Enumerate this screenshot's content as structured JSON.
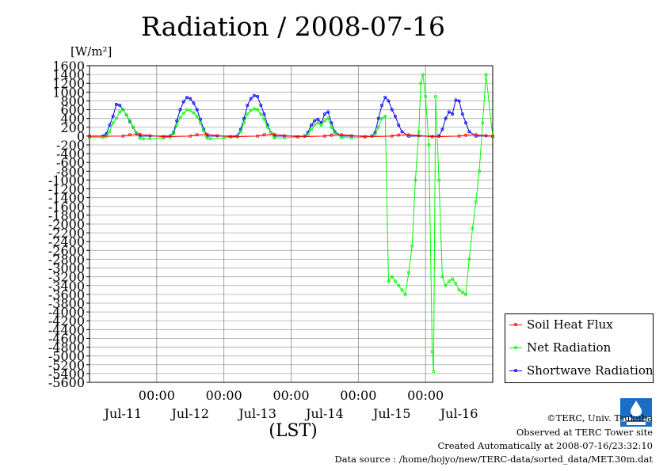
{
  "title": "Radiation / 2008-07-16",
  "unit_label": "[W/m²]",
  "x_axis_label": "(LST)",
  "legend": [
    {
      "name": "Soil Heat Flux",
      "color": "#ff0000"
    },
    {
      "name": "Net Radiation",
      "color": "#00ff00"
    },
    {
      "name": "Shortwave Radiation",
      "color": "#0000ff"
    }
  ],
  "credits": {
    "copyright": "©TERC, Univ. Tsukuba",
    "observed": "Observed at TERC Tower site",
    "created": "Created Automatically at 2008-07-16/23:32:10",
    "source": "Data source : /home/hojyo/new/TERC-data/sorted_data/MET.30m.dat"
  },
  "chart_data": {
    "type": "line",
    "title": "Radiation / 2008-07-16",
    "ylabel": "[W/m²]",
    "xlabel": "(LST)",
    "ylim": [
      -5600,
      1600
    ],
    "xlim_days": [
      0,
      6
    ],
    "y_ticks": [
      1600,
      1400,
      1200,
      1000,
      800,
      600,
      400,
      200,
      0,
      -200,
      -400,
      -600,
      -800,
      -1000,
      -1200,
      -1400,
      -1600,
      -1800,
      -2000,
      -2200,
      -2400,
      -2600,
      -2800,
      -3000,
      -3200,
      -3400,
      -3600,
      -3800,
      -4000,
      -4200,
      -4400,
      -4600,
      -4800,
      -5000,
      -5200,
      -5400,
      -5600
    ],
    "x_tick_labels": [
      {
        "day": 1,
        "time": "00:00"
      },
      {
        "day": 2,
        "time": "00:00"
      },
      {
        "day": 3,
        "time": "00:00"
      },
      {
        "day": 4,
        "time": "00:00"
      },
      {
        "day": 5,
        "time": "00:00"
      }
    ],
    "date_labels": [
      "Jul-11",
      "Jul-12",
      "Jul-13",
      "Jul-14",
      "Jul-15",
      "Jul-16"
    ],
    "grid": true,
    "legend_position": "bottom-right",
    "series": [
      {
        "name": "Soil Heat Flux",
        "color": "#ff0000",
        "points": [
          [
            0,
            -5
          ],
          [
            0.5,
            0
          ],
          [
            0.6,
            30
          ],
          [
            0.75,
            40
          ],
          [
            0.9,
            10
          ],
          [
            1.1,
            -15
          ],
          [
            1.5,
            0
          ],
          [
            1.6,
            30
          ],
          [
            1.75,
            40
          ],
          [
            1.9,
            10
          ],
          [
            2.1,
            -15
          ],
          [
            2.5,
            0
          ],
          [
            2.6,
            30
          ],
          [
            2.75,
            40
          ],
          [
            2.9,
            10
          ],
          [
            3.1,
            -15
          ],
          [
            3.5,
            0
          ],
          [
            3.6,
            20
          ],
          [
            3.75,
            30
          ],
          [
            3.9,
            10
          ],
          [
            4.1,
            -15
          ],
          [
            4.5,
            0
          ],
          [
            4.6,
            25
          ],
          [
            4.75,
            30
          ],
          [
            4.9,
            10
          ],
          [
            5.1,
            -15
          ],
          [
            5.5,
            0
          ],
          [
            5.6,
            20
          ],
          [
            5.75,
            30
          ],
          [
            5.9,
            10
          ],
          [
            6.0,
            -5
          ]
        ]
      },
      {
        "name": "Net Radiation",
        "color": "#00ff00",
        "points": [
          [
            0,
            -30
          ],
          [
            0.2,
            -30
          ],
          [
            0.25,
            -10
          ],
          [
            0.3,
            100
          ],
          [
            0.35,
            300
          ],
          [
            0.4,
            400
          ],
          [
            0.45,
            550
          ],
          [
            0.5,
            600
          ],
          [
            0.55,
            480
          ],
          [
            0.6,
            350
          ],
          [
            0.65,
            200
          ],
          [
            0.7,
            80
          ],
          [
            0.75,
            -50
          ],
          [
            0.8,
            -60
          ],
          [
            0.9,
            -60
          ],
          [
            1.1,
            -40
          ],
          [
            1.2,
            -20
          ],
          [
            1.25,
            60
          ],
          [
            1.3,
            250
          ],
          [
            1.35,
            420
          ],
          [
            1.4,
            520
          ],
          [
            1.45,
            600
          ],
          [
            1.5,
            580
          ],
          [
            1.55,
            530
          ],
          [
            1.6,
            450
          ],
          [
            1.65,
            300
          ],
          [
            1.7,
            120
          ],
          [
            1.75,
            -50
          ],
          [
            1.8,
            -60
          ],
          [
            2.0,
            -40
          ],
          [
            2.2,
            -20
          ],
          [
            2.25,
            100
          ],
          [
            2.3,
            300
          ],
          [
            2.35,
            500
          ],
          [
            2.4,
            580
          ],
          [
            2.45,
            620
          ],
          [
            2.5,
            600
          ],
          [
            2.55,
            500
          ],
          [
            2.6,
            380
          ],
          [
            2.65,
            200
          ],
          [
            2.7,
            80
          ],
          [
            2.75,
            -40
          ],
          [
            2.9,
            -40
          ],
          [
            3.1,
            -20
          ],
          [
            3.25,
            30
          ],
          [
            3.3,
            150
          ],
          [
            3.35,
            260
          ],
          [
            3.4,
            300
          ],
          [
            3.45,
            250
          ],
          [
            3.5,
            350
          ],
          [
            3.55,
            400
          ],
          [
            3.6,
            200
          ],
          [
            3.65,
            80
          ],
          [
            3.75,
            -30
          ],
          [
            3.9,
            -40
          ],
          [
            4.1,
            -20
          ],
          [
            4.25,
            30
          ],
          [
            4.3,
            200
          ],
          [
            4.35,
            400
          ],
          [
            4.4,
            450
          ],
          [
            4.45,
            -3300
          ],
          [
            4.5,
            -3200
          ],
          [
            4.55,
            -3300
          ],
          [
            4.6,
            -3400
          ],
          [
            4.65,
            -3500
          ],
          [
            4.7,
            -3600
          ],
          [
            4.75,
            -3100
          ],
          [
            4.8,
            -2500
          ],
          [
            4.85,
            -1000
          ],
          [
            4.9,
            100
          ],
          [
            4.93,
            1200
          ],
          [
            4.96,
            1400
          ],
          [
            5.0,
            900
          ],
          [
            5.05,
            -200
          ],
          [
            5.1,
            -4900
          ],
          [
            5.12,
            -5350
          ],
          [
            5.15,
            900
          ],
          [
            5.2,
            -1000
          ],
          [
            5.25,
            -3200
          ],
          [
            5.3,
            -3400
          ],
          [
            5.35,
            -3300
          ],
          [
            5.4,
            -3250
          ],
          [
            5.45,
            -3350
          ],
          [
            5.5,
            -3500
          ],
          [
            5.55,
            -3550
          ],
          [
            5.6,
            -3600
          ],
          [
            5.65,
            -2800
          ],
          [
            5.7,
            -2100
          ],
          [
            5.75,
            -1500
          ],
          [
            5.8,
            -800
          ],
          [
            5.85,
            300
          ],
          [
            5.9,
            1400
          ],
          [
            6.0,
            -20
          ]
        ]
      },
      {
        "name": "Shortwave Radiation",
        "color": "#0000ff",
        "points": [
          [
            0,
            0
          ],
          [
            0.2,
            0
          ],
          [
            0.25,
            50
          ],
          [
            0.3,
            250
          ],
          [
            0.35,
            450
          ],
          [
            0.4,
            720
          ],
          [
            0.45,
            700
          ],
          [
            0.5,
            600
          ],
          [
            0.55,
            480
          ],
          [
            0.6,
            330
          ],
          [
            0.65,
            200
          ],
          [
            0.7,
            50
          ],
          [
            0.75,
            0
          ],
          [
            1.2,
            0
          ],
          [
            1.25,
            80
          ],
          [
            1.3,
            350
          ],
          [
            1.35,
            600
          ],
          [
            1.4,
            780
          ],
          [
            1.45,
            880
          ],
          [
            1.5,
            850
          ],
          [
            1.55,
            750
          ],
          [
            1.6,
            600
          ],
          [
            1.65,
            380
          ],
          [
            1.7,
            150
          ],
          [
            1.75,
            0
          ],
          [
            2.2,
            0
          ],
          [
            2.25,
            150
          ],
          [
            2.3,
            400
          ],
          [
            2.35,
            700
          ],
          [
            2.4,
            850
          ],
          [
            2.45,
            920
          ],
          [
            2.5,
            900
          ],
          [
            2.55,
            700
          ],
          [
            2.6,
            500
          ],
          [
            2.65,
            250
          ],
          [
            2.7,
            80
          ],
          [
            2.75,
            0
          ],
          [
            3.2,
            0
          ],
          [
            3.25,
            80
          ],
          [
            3.3,
            250
          ],
          [
            3.35,
            350
          ],
          [
            3.4,
            380
          ],
          [
            3.45,
            300
          ],
          [
            3.5,
            500
          ],
          [
            3.55,
            550
          ],
          [
            3.6,
            300
          ],
          [
            3.65,
            100
          ],
          [
            3.75,
            0
          ],
          [
            4.2,
            0
          ],
          [
            4.25,
            80
          ],
          [
            4.3,
            400
          ],
          [
            4.35,
            700
          ],
          [
            4.4,
            880
          ],
          [
            4.45,
            800
          ],
          [
            4.5,
            600
          ],
          [
            4.55,
            450
          ],
          [
            4.6,
            250
          ],
          [
            4.65,
            100
          ],
          [
            4.75,
            0
          ],
          [
            5.2,
            0
          ],
          [
            5.25,
            150
          ],
          [
            5.3,
            400
          ],
          [
            5.35,
            550
          ],
          [
            5.4,
            500
          ],
          [
            5.45,
            820
          ],
          [
            5.5,
            800
          ],
          [
            5.55,
            500
          ],
          [
            5.6,
            300
          ],
          [
            5.65,
            100
          ],
          [
            5.75,
            0
          ],
          [
            6.0,
            0
          ]
        ]
      }
    ]
  }
}
